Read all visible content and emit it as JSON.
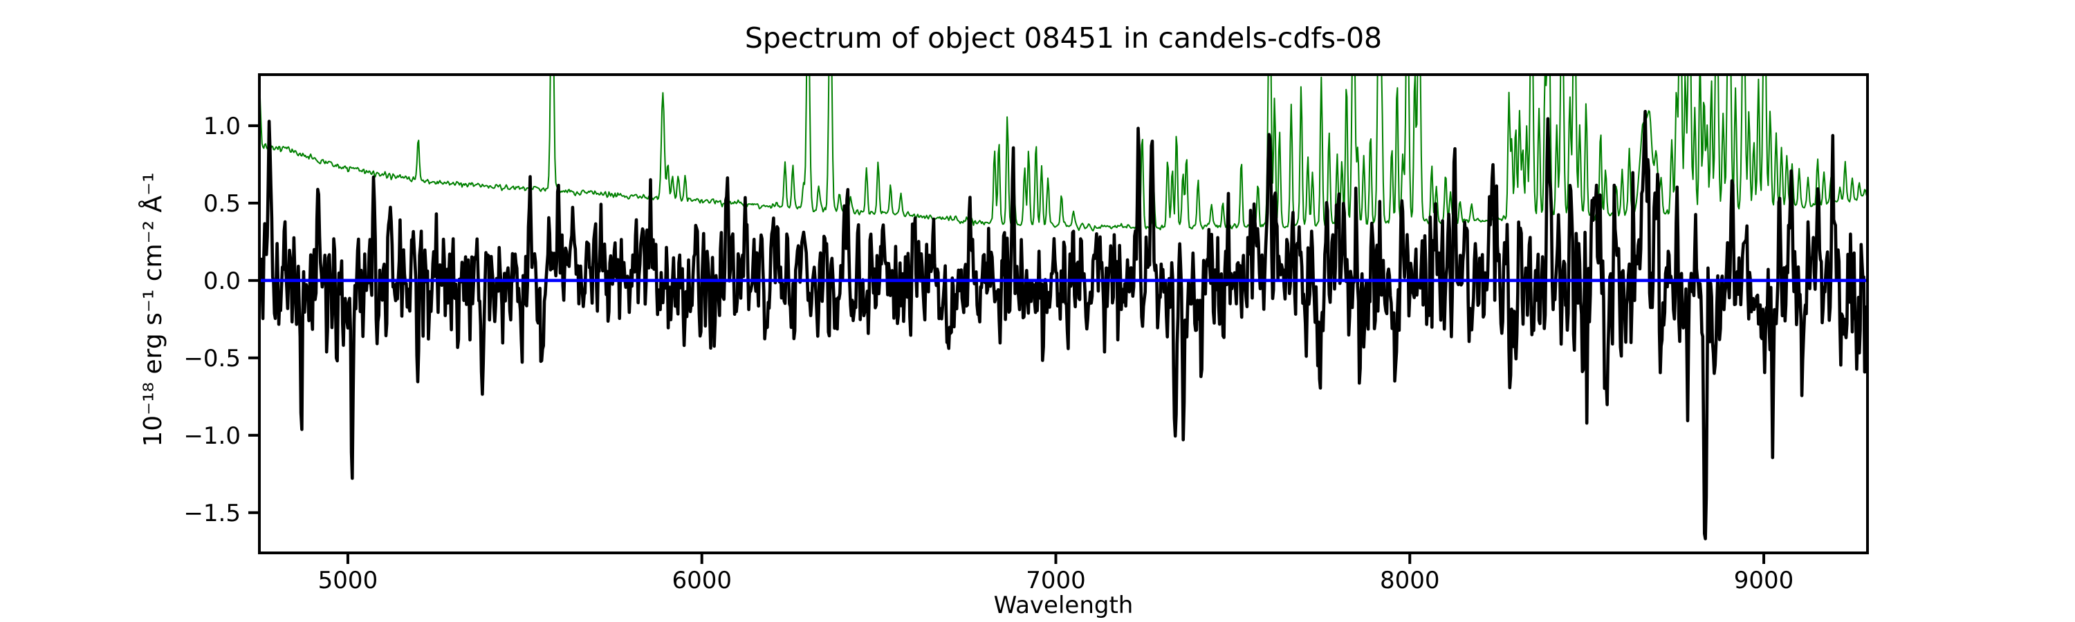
{
  "figure": {
    "title": "Spectrum of object 08451 in candels-cdfs-08",
    "background": "#ffffff"
  },
  "chart_data": {
    "type": "line",
    "title": "Spectrum of object 08451 in candels-cdfs-08",
    "xlabel": "Wavelength",
    "ylabel": "10⁻¹⁸ erg s⁻¹ cm⁻² Å⁻¹",
    "xlim": [
      4750,
      9293
    ],
    "ylim": [
      -1.76,
      1.33
    ],
    "grid": false,
    "legend": "none",
    "xticks": {
      "values": [
        5000,
        6000,
        7000,
        8000,
        9000
      ],
      "labels": [
        "5000",
        "6000",
        "7000",
        "8000",
        "9000"
      ]
    },
    "yticks": {
      "values": [
        1.0,
        0.5,
        0.0,
        -0.5,
        -1.0,
        -1.5
      ],
      "labels": [
        "1.0",
        "0.5",
        "0.0",
        "−0.5",
        "−1.0",
        "−1.5"
      ]
    },
    "spine_color": "#000000",
    "sampling_angstrom": 2.5,
    "seed": 20240851,
    "series": [
      {
        "name": "noise-spectrum",
        "color": "#008000",
        "linewidth": 2.0,
        "noise_sigma": 0.009,
        "spike_sigma": 2.8,
        "baseline": [
          [
            4750,
            1.33
          ],
          [
            4753,
            1.1
          ],
          [
            4757,
            0.9
          ],
          [
            4763,
            0.862
          ],
          [
            4775,
            0.856
          ],
          [
            4800,
            0.847
          ],
          [
            4815,
            0.86
          ],
          [
            4828,
            0.852
          ],
          [
            4840,
            0.83
          ],
          [
            4853,
            0.843
          ],
          [
            4865,
            0.815
          ],
          [
            4878,
            0.8
          ],
          [
            4890,
            0.79
          ],
          [
            4903,
            0.795
          ],
          [
            4915,
            0.775
          ],
          [
            4930,
            0.765
          ],
          [
            4950,
            0.755
          ],
          [
            4975,
            0.74
          ],
          [
            5000,
            0.73
          ],
          [
            5060,
            0.705
          ],
          [
            5150,
            0.665
          ],
          [
            5250,
            0.638
          ],
          [
            5350,
            0.617
          ],
          [
            5450,
            0.6
          ],
          [
            5550,
            0.588
          ],
          [
            5650,
            0.568
          ],
          [
            5750,
            0.553
          ],
          [
            5850,
            0.537
          ],
          [
            5950,
            0.522
          ],
          [
            6050,
            0.505
          ],
          [
            6150,
            0.49
          ],
          [
            6250,
            0.473
          ],
          [
            6350,
            0.458
          ],
          [
            6450,
            0.442
          ],
          [
            6550,
            0.428
          ],
          [
            6650,
            0.408
          ],
          [
            6750,
            0.388
          ],
          [
            6850,
            0.372
          ],
          [
            6950,
            0.362
          ],
          [
            7050,
            0.352
          ],
          [
            7150,
            0.347
          ],
          [
            7250,
            0.342
          ],
          [
            7400,
            0.345
          ],
          [
            7550,
            0.35
          ],
          [
            7700,
            0.356
          ],
          [
            7850,
            0.368
          ],
          [
            8000,
            0.376
          ],
          [
            8150,
            0.39
          ],
          [
            8300,
            0.4
          ],
          [
            8450,
            0.415
          ],
          [
            8600,
            0.43
          ],
          [
            8750,
            0.445
          ],
          [
            8900,
            0.46
          ],
          [
            9050,
            0.475
          ],
          [
            9150,
            0.49
          ],
          [
            9230,
            0.51
          ],
          [
            9270,
            0.53
          ],
          [
            9293,
            0.56
          ]
        ],
        "spikes": [
          [
            5199,
            0.92
          ],
          [
            5577,
            2.2,
            4
          ],
          [
            5890,
            1.22,
            4
          ],
          [
            5904,
            0.75
          ],
          [
            5917,
            0.68
          ],
          [
            5933,
            0.66
          ],
          [
            5953,
            0.68
          ],
          [
            6235,
            0.76
          ],
          [
            6257,
            0.73
          ],
          [
            6287,
            0.63
          ],
          [
            6300,
            2.0,
            4
          ],
          [
            6330,
            0.63
          ],
          [
            6363,
            2.0,
            4
          ],
          [
            6388,
            0.56
          ],
          [
            6420,
            0.55
          ],
          [
            6465,
            0.73
          ],
          [
            6498,
            0.79
          ],
          [
            6533,
            0.63
          ],
          [
            6562,
            0.56
          ],
          [
            6827,
            0.86
          ],
          [
            6839,
            0.89
          ],
          [
            6863,
            1.06
          ],
          [
            6881,
            0.68
          ],
          [
            6912,
            0.73
          ],
          [
            6923,
            0.86
          ],
          [
            6944,
            0.91
          ],
          [
            6960,
            0.73
          ],
          [
            6978,
            0.66
          ],
          [
            7016,
            0.56
          ],
          [
            7050,
            0.46
          ],
          [
            7244,
            0.96
          ],
          [
            7276,
            0.61
          ],
          [
            7316,
            0.79
          ],
          [
            7329,
            0.73
          ],
          [
            7341,
            0.96
          ],
          [
            7359,
            0.69
          ],
          [
            7369,
            0.81
          ],
          [
            7402,
            0.66
          ],
          [
            7440,
            0.49
          ],
          [
            7472,
            0.51
          ],
          [
            7524,
            0.79
          ],
          [
            7571,
            0.63
          ],
          [
            7604,
            2.0,
            4
          ],
          [
            7618,
            1.18
          ],
          [
            7632,
            0.95
          ],
          [
            7665,
            1.15
          ],
          [
            7693,
            1.26
          ],
          [
            7712,
            0.81
          ],
          [
            7725,
            0.71
          ],
          [
            7750,
            1.32
          ],
          [
            7772,
            0.96
          ],
          [
            7795,
            0.81
          ],
          [
            7808,
            0.76
          ],
          [
            7821,
            1.3
          ],
          [
            7841,
            2.0,
            4
          ],
          [
            7853,
            0.86
          ],
          [
            7870,
            0.81
          ],
          [
            7889,
            0.96
          ],
          [
            7913,
            2.0,
            4
          ],
          [
            7921,
            1.1
          ],
          [
            7949,
            0.86
          ],
          [
            7964,
            1.3
          ],
          [
            7980,
            0.81
          ],
          [
            7993,
            2.0,
            4
          ],
          [
            8014,
            1.35
          ],
          [
            8026,
            2.0,
            4
          ],
          [
            8062,
            0.73
          ],
          [
            8075,
            0.61
          ],
          [
            8101,
            0.71
          ],
          [
            8115,
            0.56
          ],
          [
            8142,
            0.51
          ],
          [
            8175,
            0.49
          ],
          [
            8280,
            1.2
          ],
          [
            8288,
            0.9
          ],
          [
            8299,
            1.0
          ],
          [
            8310,
            1.1
          ],
          [
            8319,
            0.86
          ],
          [
            8330,
            1.0
          ],
          [
            8344,
            2.0,
            4
          ],
          [
            8365,
            1.1
          ],
          [
            8382,
            1.3
          ],
          [
            8392,
            2.0,
            4
          ],
          [
            8415,
            1.0
          ],
          [
            8430,
            2.0,
            4
          ],
          [
            8452,
            1.2
          ],
          [
            8465,
            2.0,
            4
          ],
          [
            8480,
            1.0
          ],
          [
            8498,
            1.16
          ],
          [
            8539,
            0.96
          ],
          [
            8553,
            0.71
          ],
          [
            8583,
            0.61
          ],
          [
            8600,
            0.71
          ],
          [
            8620,
            0.86
          ],
          [
            8660,
            1.0,
            10
          ],
          [
            8678,
            0.97,
            7
          ],
          [
            8696,
            0.8,
            5
          ],
          [
            8710,
            0.66
          ],
          [
            8740,
            0.9
          ],
          [
            8753,
            1.2
          ],
          [
            8764,
            2.0,
            4
          ],
          [
            8778,
            1.3
          ],
          [
            8790,
            2.0,
            4
          ],
          [
            8805,
            1.1
          ],
          [
            8820,
            1.45
          ],
          [
            8831,
            1.2
          ],
          [
            8840,
            1.0
          ],
          [
            8852,
            1.3
          ],
          [
            8867,
            2.0,
            4
          ],
          [
            8885,
            1.1
          ],
          [
            8897,
            0.95
          ],
          [
            8903,
            2.0,
            4
          ],
          [
            8920,
            1.25
          ],
          [
            8943,
            2.0,
            4
          ],
          [
            8958,
            1.1
          ],
          [
            8972,
            0.9
          ],
          [
            8985,
            1.3
          ],
          [
            9002,
            2.0,
            4
          ],
          [
            9018,
            1.1
          ],
          [
            9035,
            0.95
          ],
          [
            9050,
            0.85
          ],
          [
            9065,
            0.8
          ],
          [
            9080,
            0.76
          ],
          [
            9100,
            0.71
          ],
          [
            9125,
            0.66
          ],
          [
            9152,
            0.78
          ],
          [
            9170,
            0.71
          ],
          [
            9190,
            0.66
          ],
          [
            9215,
            0.61
          ],
          [
            9230,
            0.76
          ],
          [
            9250,
            0.66
          ],
          [
            9270,
            0.61
          ],
          [
            9285,
            0.58
          ]
        ]
      },
      {
        "name": "flux",
        "color": "#000000",
        "linewidth": 4.6,
        "feature_sigma": 3.5,
        "noise": {
          "sigma_profile": [
            [
              4750,
              0.2
            ],
            [
              5500,
              0.19
            ],
            [
              6200,
              0.185
            ],
            [
              6900,
              0.18
            ],
            [
              7300,
              0.19
            ],
            [
              7700,
              0.21
            ],
            [
              8100,
              0.225
            ],
            [
              8500,
              0.23
            ],
            [
              8900,
              0.24
            ],
            [
              9293,
              0.25
            ]
          ],
          "wobble": [
            {
              "amp": 0.04,
              "period": 480,
              "phase": 1.7
            },
            {
              "amp": 0.045,
              "period": 1900,
              "phase": 4.0
            }
          ]
        },
        "features": [
          [
            4779,
            0.87
          ],
          [
            4867,
            -0.72
          ],
          [
            4915,
            0.8
          ],
          [
            5012,
            -0.85
          ],
          [
            5072,
            0.6
          ],
          [
            5120,
            0.55
          ],
          [
            5196,
            -0.55
          ],
          [
            5379,
            -0.62
          ],
          [
            5514,
            0.75
          ],
          [
            5550,
            -0.5
          ],
          [
            5596,
            0.62
          ],
          [
            6073,
            0.58
          ],
          [
            6180,
            -0.55
          ],
          [
            6290,
            0.6
          ],
          [
            6411,
            0.55
          ],
          [
            6700,
            -0.5
          ],
          [
            6760,
            0.63
          ],
          [
            6879,
            0.56
          ],
          [
            7233,
            1.02
          ],
          [
            7270,
            1.19
          ],
          [
            7337,
            -0.95
          ],
          [
            7360,
            -0.93
          ],
          [
            7604,
            1.1
          ],
          [
            7690,
            0.6
          ],
          [
            7745,
            -0.65
          ],
          [
            7858,
            -0.62
          ],
          [
            7960,
            -0.6
          ],
          [
            8236,
            0.62,
            6
          ],
          [
            8285,
            -0.58
          ],
          [
            8300,
            -0.6
          ],
          [
            8390,
            0.85
          ],
          [
            8455,
            0.85
          ],
          [
            8488,
            -0.62
          ],
          [
            8553,
            -0.55
          ],
          [
            8666,
            0.92,
            8
          ],
          [
            8697,
            0.8,
            5
          ],
          [
            8834,
            -1.6,
            4
          ],
          [
            8858,
            -0.7
          ],
          [
            9002,
            -0.62
          ],
          [
            9024,
            -0.98
          ],
          [
            9076,
            0.8
          ],
          [
            9150,
            0.9
          ],
          [
            9196,
            0.65
          ],
          [
            9260,
            -0.55
          ]
        ]
      },
      {
        "name": "zero-line",
        "color": "#0000ff",
        "linewidth": 4.6,
        "y": 0.0
      }
    ]
  }
}
